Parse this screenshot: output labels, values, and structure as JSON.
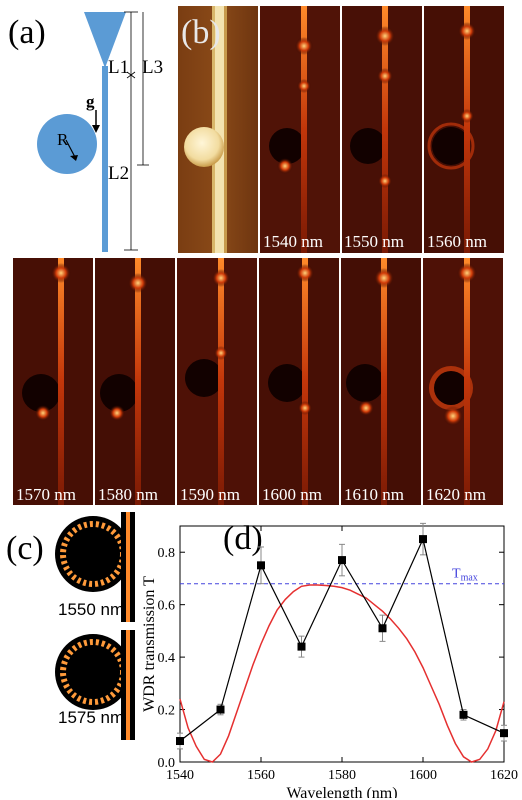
{
  "panel_a": {
    "letter": "(a)",
    "labels": {
      "l1": "L1",
      "l3": "L3",
      "g": "g",
      "r": "R",
      "l2": "L2"
    }
  },
  "panel_b": {
    "letter": "(b)",
    "top_row_wavelengths": [
      "1540 nm",
      "1550 nm",
      "1560 nm"
    ],
    "bottom_row_wavelengths": [
      "1570 nm",
      "1580 nm",
      "1590 nm",
      "1600 nm",
      "1610 nm",
      "1620 nm"
    ]
  },
  "panel_c": {
    "letter": "(c)",
    "wavelengths": [
      "1550 nm",
      "1575 nm"
    ]
  },
  "chart_data": {
    "type": "line",
    "letter": "(d)",
    "xlabel": "Wavelength (nm)",
    "ylabel": "WDR transmission T",
    "xlim": [
      1540,
      1620
    ],
    "ylim": [
      0.0,
      0.9
    ],
    "xticks": [
      1540,
      1560,
      1580,
      1600,
      1620
    ],
    "yticks": [
      0.0,
      0.2,
      0.4,
      0.6,
      0.8
    ],
    "series": [
      {
        "kind": "measured",
        "marker": "square",
        "color": "#000000",
        "x": [
          1540,
          1550,
          1560,
          1570,
          1580,
          1590,
          1600,
          1610,
          1620
        ],
        "y": [
          0.08,
          0.2,
          0.75,
          0.44,
          0.77,
          0.51,
          0.85,
          0.18,
          0.11
        ],
        "yerr": [
          0.03,
          0.02,
          0.07,
          0.04,
          0.06,
          0.05,
          0.06,
          0.02,
          0.03
        ]
      },
      {
        "kind": "fit",
        "color": "#e53030",
        "x": [
          1540,
          1542,
          1544,
          1546,
          1548,
          1550,
          1552,
          1554,
          1556,
          1558,
          1560,
          1562,
          1564,
          1566,
          1568,
          1570,
          1572,
          1574,
          1576,
          1578,
          1580,
          1582,
          1584,
          1586,
          1588,
          1590,
          1592,
          1594,
          1596,
          1598,
          1600,
          1602,
          1604,
          1606,
          1608,
          1610,
          1612,
          1614,
          1616,
          1618,
          1620
        ],
        "y": [
          0.24,
          0.13,
          0.06,
          0.01,
          0.0,
          0.03,
          0.1,
          0.19,
          0.28,
          0.37,
          0.45,
          0.52,
          0.58,
          0.62,
          0.65,
          0.67,
          0.675,
          0.675,
          0.673,
          0.67,
          0.665,
          0.655,
          0.64,
          0.625,
          0.6,
          0.575,
          0.545,
          0.51,
          0.47,
          0.42,
          0.36,
          0.29,
          0.22,
          0.14,
          0.07,
          0.02,
          0.0,
          0.01,
          0.05,
          0.12,
          0.23
        ]
      }
    ],
    "tmax": {
      "label": "T",
      "subscript": "max",
      "value": 0.68,
      "color": "#4444dd"
    }
  }
}
